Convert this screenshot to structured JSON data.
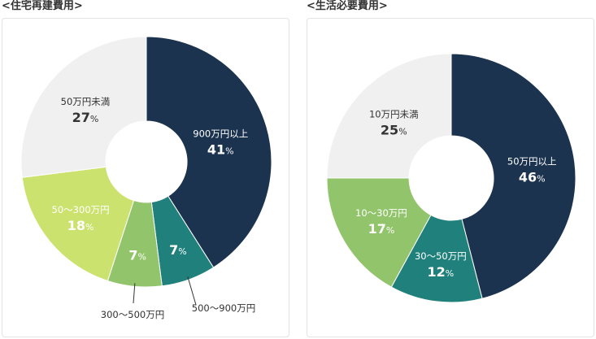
{
  "chart_data": [
    {
      "type": "pie",
      "title": "<住宅再建費用>",
      "unit": "%",
      "slices": [
        {
          "label": "900万円以上",
          "value": 41,
          "color": "#1b334e",
          "text": "light"
        },
        {
          "label": "500〜900万円",
          "value": 7,
          "color": "#20807c",
          "text": "light"
        },
        {
          "label": "300〜500万円",
          "value": 7,
          "color": "#92c46b",
          "text": "light"
        },
        {
          "label": "50〜300万円",
          "value": 18,
          "color": "#cce26e",
          "text": "light"
        },
        {
          "label": "50万円未満",
          "value": 27,
          "color": "#f0f0f0",
          "text": "dark"
        }
      ]
    },
    {
      "type": "pie",
      "title": "<生活必要費用>",
      "unit": "%",
      "slices": [
        {
          "label": "50万円以上",
          "value": 46,
          "color": "#1b334e",
          "text": "light"
        },
        {
          "label": "30〜50万円",
          "value": 12,
          "color": "#20807c",
          "text": "light"
        },
        {
          "label": "10〜30万円",
          "value": 17,
          "color": "#92c46b",
          "text": "light"
        },
        {
          "label": "10万円未満",
          "value": 25,
          "color": "#f0f0f0",
          "text": "dark"
        }
      ]
    }
  ]
}
